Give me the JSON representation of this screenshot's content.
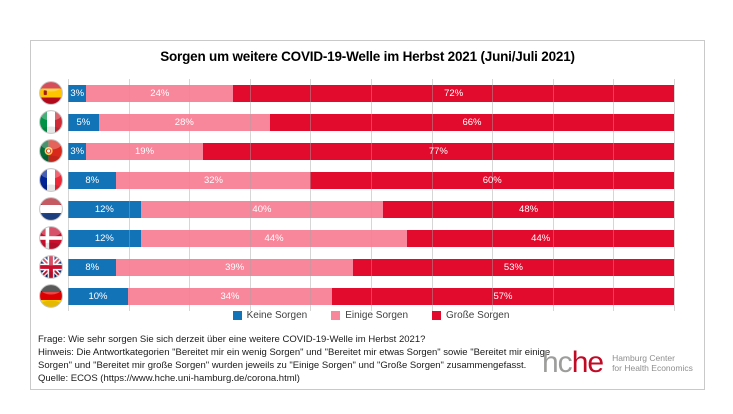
{
  "chart_data": {
    "type": "bar",
    "subtype": "horizontal-100pct-stacked",
    "title": "Sorgen um weitere COVID-19-Welle im Herbst 2021 (Juni/Juli 2021)",
    "categories": [
      "Spanien",
      "Italien",
      "Portugal",
      "Frankreich",
      "Niederlande",
      "Dänemark",
      "Großbritannien",
      "Deutschland"
    ],
    "flags": [
      "spain",
      "italy",
      "portugal",
      "france",
      "netherlands",
      "denmark",
      "uk",
      "germany"
    ],
    "series": [
      {
        "name": "Keine Sorgen",
        "color": "#1373B7",
        "values": [
          3,
          5,
          3,
          8,
          12,
          12,
          8,
          10
        ]
      },
      {
        "name": "Einige Sorgen",
        "color": "#F8879B",
        "values": [
          24,
          28,
          19,
          32,
          40,
          44,
          39,
          34
        ]
      },
      {
        "name": "Große Sorgen",
        "color": "#E30B2D",
        "values": [
          72,
          66,
          77,
          60,
          48,
          44,
          53,
          57
        ]
      }
    ],
    "unit": "%",
    "xlim": [
      0,
      100
    ],
    "grid": true,
    "gridline_step_percent": 10,
    "legend_position": "bottom"
  },
  "footer": {
    "lines": [
      "Frage: Wie sehr sorgen Sie sich derzeit über eine weitere COVID-19-Welle im Herbst 2021?",
      "Hinweis: Die Antwortkategorien \"Bereitet mir ein wenig Sorgen\" und \"Bereitet mir etwas Sorgen\" sowie \"Bereitet mir einige",
      "Sorgen\" und \"Bereitet mir große Sorgen\" wurden jeweils zu \"Einige Sorgen\" und \"Große Sorgen\" zusammengefasst.",
      "Quelle: ECOS (https://www.hche.uni-hamburg.de/corona.html)"
    ]
  },
  "logo": {
    "wordmark_gray": "hc",
    "wordmark_red": "he",
    "line1": "Hamburg Center",
    "line2": "for Health Economics"
  }
}
